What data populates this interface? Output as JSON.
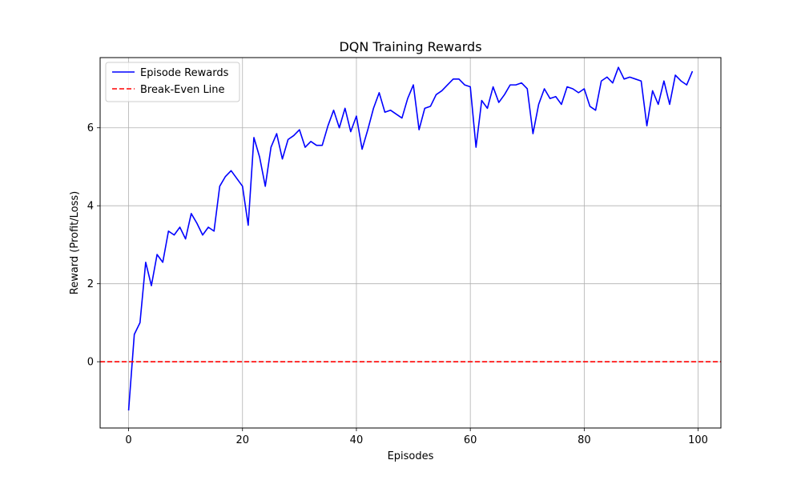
{
  "chart_data": {
    "type": "line",
    "title": "DQN Training Rewards",
    "xlabel": "Episodes",
    "ylabel": "Reward (Profit/Loss)",
    "xlim": [
      -5,
      104
    ],
    "ylim": [
      -1.7,
      7.8
    ],
    "xticks": [
      0,
      20,
      40,
      60,
      80,
      100
    ],
    "yticks": [
      0,
      2,
      4,
      6
    ],
    "grid": true,
    "legend_position": "upper-left",
    "series": [
      {
        "name": "Episode Rewards",
        "color": "#0000ff",
        "style": "solid",
        "x": [
          0,
          1,
          2,
          3,
          4,
          5,
          6,
          7,
          8,
          9,
          10,
          11,
          12,
          13,
          14,
          15,
          16,
          17,
          18,
          19,
          20,
          21,
          22,
          23,
          24,
          25,
          26,
          27,
          28,
          29,
          30,
          31,
          32,
          33,
          34,
          35,
          36,
          37,
          38,
          39,
          40,
          41,
          42,
          43,
          44,
          45,
          46,
          47,
          48,
          49,
          50,
          51,
          52,
          53,
          54,
          55,
          56,
          57,
          58,
          59,
          60,
          61,
          62,
          63,
          64,
          65,
          66,
          67,
          68,
          69,
          70,
          71,
          72,
          73,
          74,
          75,
          76,
          77,
          78,
          79,
          80,
          81,
          82,
          83,
          84,
          85,
          86,
          87,
          88,
          89,
          90,
          91,
          92,
          93,
          94,
          95,
          96,
          97,
          98,
          99
        ],
        "y": [
          -1.25,
          0.7,
          1.0,
          2.55,
          1.95,
          2.75,
          2.55,
          3.35,
          3.25,
          3.45,
          3.15,
          3.8,
          3.55,
          3.25,
          3.45,
          3.35,
          4.5,
          4.75,
          4.9,
          4.7,
          4.5,
          3.5,
          5.75,
          5.25,
          4.5,
          5.5,
          5.85,
          5.2,
          5.7,
          5.8,
          5.95,
          5.5,
          5.65,
          5.55,
          5.55,
          6.05,
          6.45,
          6.0,
          6.5,
          5.9,
          6.3,
          5.45,
          5.95,
          6.5,
          6.9,
          6.4,
          6.45,
          6.35,
          6.25,
          6.75,
          7.1,
          5.95,
          6.5,
          6.55,
          6.85,
          6.95,
          7.1,
          7.25,
          7.25,
          7.1,
          7.05,
          5.5,
          6.7,
          6.5,
          7.05,
          6.65,
          6.85,
          7.1,
          7.1,
          7.15,
          7.0,
          5.85,
          6.6,
          7.0,
          6.75,
          6.8,
          6.6,
          7.05,
          7.0,
          6.9,
          7.0,
          6.55,
          6.45,
          7.2,
          7.3,
          7.15,
          7.55,
          7.25,
          7.3,
          7.25,
          7.2,
          6.05,
          6.95,
          6.6,
          7.2,
          6.6,
          7.35,
          7.2,
          7.1,
          7.45
        ]
      },
      {
        "name": "Break-Even Line",
        "color": "#ff0000",
        "style": "dashed",
        "y_constant": 0
      }
    ]
  }
}
